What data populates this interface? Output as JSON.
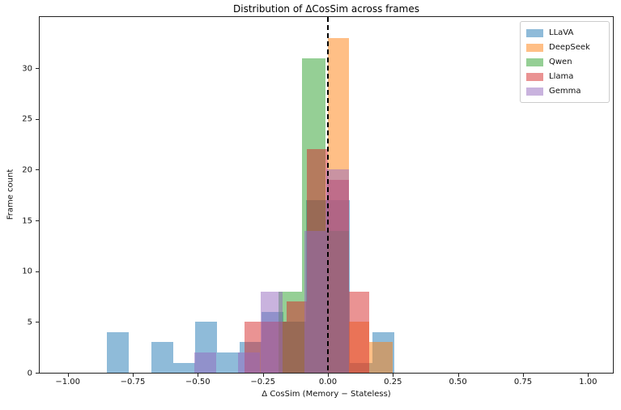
{
  "chart_data": {
    "type": "histogram-overlay",
    "title": "Distribution of ΔCosSim across frames",
    "xlabel": "Δ CosSim  (Memory − Stateless)",
    "ylabel": "Frame count",
    "xlim": [
      -1.11,
      1.1
    ],
    "ylim": [
      0,
      35.2
    ],
    "grid": false,
    "x_tick_values": [
      -1.0,
      -0.75,
      -0.5,
      -0.25,
      0.0,
      0.25,
      0.5,
      0.75,
      1.0
    ],
    "x_tick_labels": [
      "−1.00",
      "−0.75",
      "−0.50",
      "−0.25",
      "0.00",
      "0.25",
      "0.50",
      "0.75",
      "1.00"
    ],
    "y_tick_values": [
      0,
      5,
      10,
      15,
      20,
      25,
      30
    ],
    "y_tick_labels": [
      "0",
      "5",
      "10",
      "15",
      "20",
      "25",
      "30"
    ],
    "vline": {
      "x": 0.0,
      "style": "dashed",
      "color": "#000000"
    },
    "bar_alpha": 0.5,
    "legend": {
      "position": "upper-right",
      "entries": [
        "LLaVA",
        "DeepSeek",
        "Qwen",
        "Llama",
        "Gemma"
      ]
    },
    "series": [
      {
        "name": "LLaVA",
        "color": "#1f77b4",
        "bars": [
          {
            "x0": -0.85,
            "x1": -0.765,
            "count": 4
          },
          {
            "x0": -0.68,
            "x1": -0.595,
            "count": 3
          },
          {
            "x0": -0.595,
            "x1": -0.51,
            "count": 1
          },
          {
            "x0": -0.51,
            "x1": -0.425,
            "count": 5
          },
          {
            "x0": -0.425,
            "x1": -0.34,
            "count": 2
          },
          {
            "x0": -0.34,
            "x1": -0.255,
            "count": 3
          },
          {
            "x0": -0.255,
            "x1": -0.17,
            "count": 6
          },
          {
            "x0": -0.17,
            "x1": -0.085,
            "count": 5
          },
          {
            "x0": -0.085,
            "x1": 0.0,
            "count": 17
          },
          {
            "x0": 0.0,
            "x1": 0.085,
            "count": 17
          },
          {
            "x0": 0.085,
            "x1": 0.17,
            "count": 1
          },
          {
            "x0": 0.17,
            "x1": 0.255,
            "count": 4
          }
        ]
      },
      {
        "name": "DeepSeek",
        "color": "#ff7f0e",
        "bars": [
          {
            "x0": 0.0,
            "x1": 0.08,
            "count": 33
          },
          {
            "x0": 0.08,
            "x1": 0.16,
            "count": 5
          },
          {
            "x0": 0.16,
            "x1": 0.25,
            "count": 3
          }
        ]
      },
      {
        "name": "Qwen",
        "color": "#2ca02c",
        "bars": [
          {
            "x0": -0.19,
            "x1": -0.1,
            "count": 8
          },
          {
            "x0": -0.1,
            "x1": -0.01,
            "count": 31
          },
          {
            "x0": -0.01,
            "x1": 0.08,
            "count": 14
          }
        ]
      },
      {
        "name": "Llama",
        "color": "#d62728",
        "bars": [
          {
            "x0": -0.32,
            "x1": -0.24,
            "count": 5
          },
          {
            "x0": -0.24,
            "x1": -0.16,
            "count": 5
          },
          {
            "x0": -0.16,
            "x1": -0.08,
            "count": 7
          },
          {
            "x0": -0.08,
            "x1": 0.0,
            "count": 22
          },
          {
            "x0": 0.0,
            "x1": 0.08,
            "count": 19
          },
          {
            "x0": 0.08,
            "x1": 0.16,
            "count": 8
          }
        ]
      },
      {
        "name": "Gemma",
        "color": "#9467bd",
        "bars": [
          {
            "x0": -0.515,
            "x1": -0.43,
            "count": 2
          },
          {
            "x0": -0.345,
            "x1": -0.26,
            "count": 2
          },
          {
            "x0": -0.26,
            "x1": -0.175,
            "count": 8
          },
          {
            "x0": -0.09,
            "x1": -0.005,
            "count": 14
          },
          {
            "x0": -0.005,
            "x1": 0.08,
            "count": 20
          }
        ]
      }
    ]
  }
}
